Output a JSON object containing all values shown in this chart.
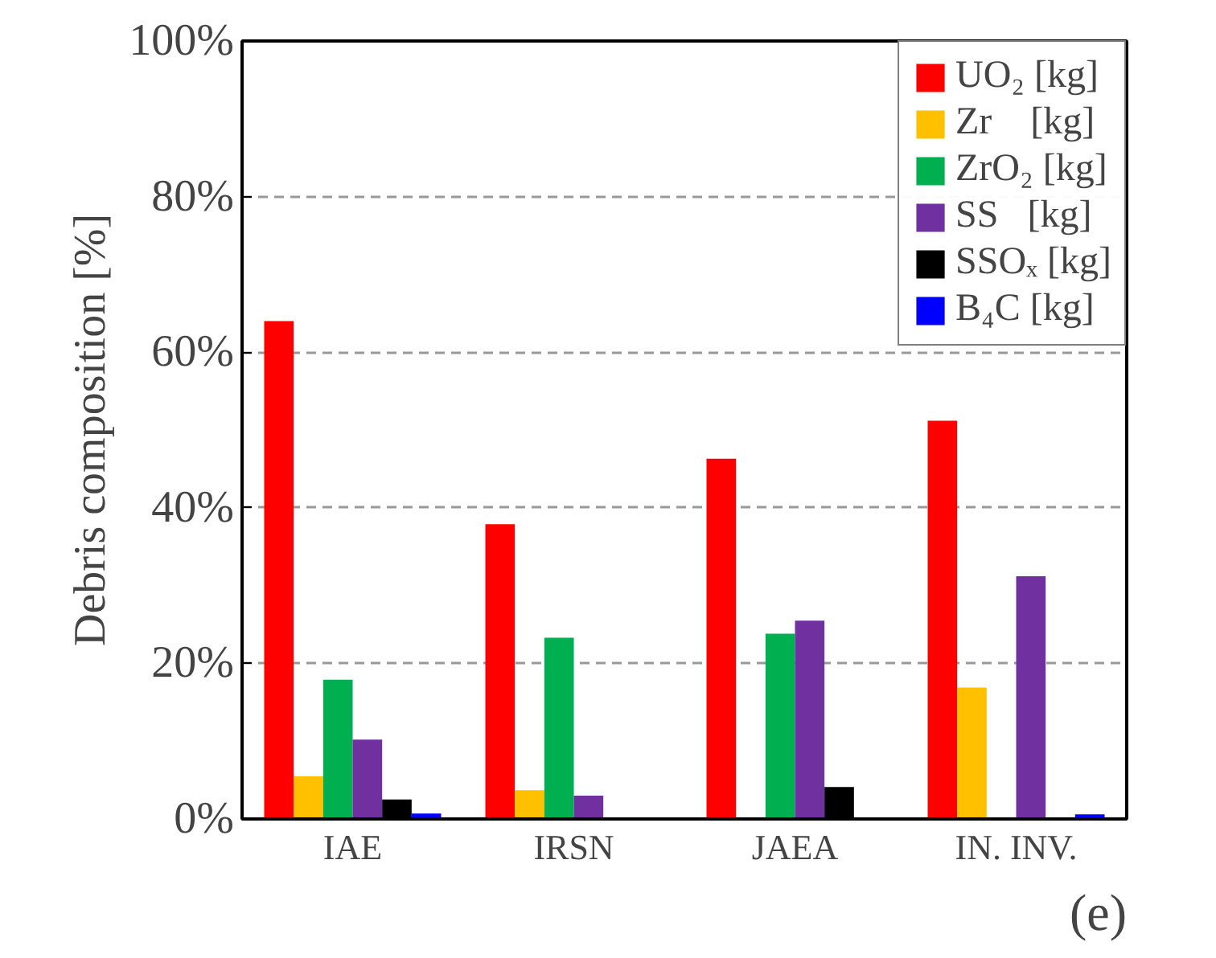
{
  "chart_data": {
    "type": "bar",
    "ylabel": "Debris composition [%]",
    "categories": [
      "IAE",
      "IRSN",
      "JAEA",
      "IN. INV."
    ],
    "series": [
      {
        "name": "UO₂ [kg]",
        "color": "#ff0000",
        "values": [
          64,
          37.9,
          46.3,
          51.2
        ]
      },
      {
        "name": "Zr    [kg]",
        "color": "#ffc000",
        "values": [
          5.5,
          3.7,
          0,
          16.9
        ]
      },
      {
        "name": "ZrO₂ [kg]",
        "color": "#00b050",
        "values": [
          17.9,
          23.3,
          23.8,
          0
        ]
      },
      {
        "name": "SS   [kg]",
        "color": "#7030a0",
        "values": [
          10.2,
          3.0,
          25.5,
          31.2
        ]
      },
      {
        "name": "SSOₓ [kg]",
        "color": "#000000",
        "values": [
          2.5,
          0,
          4.1,
          0
        ]
      },
      {
        "name": "B₄C [kg]",
        "color": "#0000ff",
        "values": [
          0.7,
          0,
          0,
          0.6
        ]
      }
    ],
    "ylim": [
      0,
      100
    ],
    "yticks": [
      {
        "value": 0,
        "label": "0%"
      },
      {
        "value": 20,
        "label": "20%"
      },
      {
        "value": 40,
        "label": "40%"
      },
      {
        "value": 60,
        "label": "60%"
      },
      {
        "value": 80,
        "label": "80%"
      },
      {
        "value": 100,
        "label": "100%"
      }
    ],
    "grid": "y",
    "legend": "top right",
    "annotations": [
      "(e)"
    ]
  }
}
